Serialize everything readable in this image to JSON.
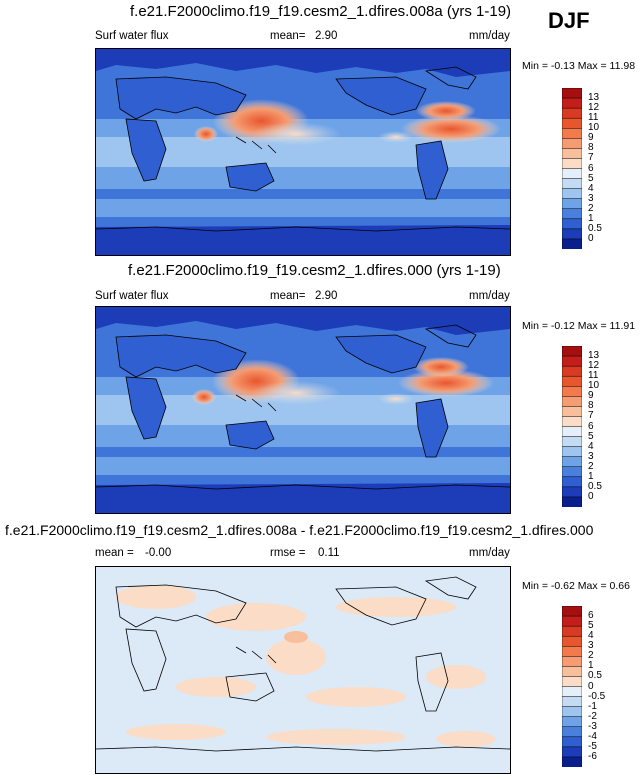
{
  "season": "DJF",
  "panels": [
    {
      "title": "f.e21.F2000climo.f19_f19.cesm2_1.dfires.008a (yrs 1-19)",
      "left_label": "Surf water flux",
      "stat_label": "mean=",
      "stat_value": "2.90",
      "units": "mm/day",
      "minmax": "Min = -0.13 Max = 11.98",
      "colorbar_labels": [
        "13",
        "12",
        "11",
        "10",
        "9",
        "8",
        "7",
        "6",
        "5",
        "4",
        "3",
        "2",
        "1",
        "0.5",
        "0"
      ],
      "colorbar_colors": [
        "#a50f0f",
        "#c41e1a",
        "#d93a23",
        "#e8562e",
        "#f27a4c",
        "#f59c72",
        "#f8bf9c",
        "#fbdcc6",
        "#e4eff9",
        "#c3dcf4",
        "#9ec5ef",
        "#6fa3e8",
        "#4a80dd",
        "#2f5fd0",
        "#1c3cb8",
        "#0b1f8c"
      ]
    },
    {
      "title": "f.e21.F2000climo.f19_f19.cesm2_1.dfires.000 (yrs 1-19)",
      "left_label": "Surf water flux",
      "stat_label": "mean=",
      "stat_value": "2.90",
      "units": "mm/day",
      "minmax": "Min = -0.12 Max = 11.91",
      "colorbar_labels": [
        "13",
        "12",
        "11",
        "10",
        "9",
        "8",
        "7",
        "6",
        "5",
        "4",
        "3",
        "2",
        "1",
        "0.5",
        "0"
      ],
      "colorbar_colors": [
        "#a50f0f",
        "#c41e1a",
        "#d93a23",
        "#e8562e",
        "#f27a4c",
        "#f59c72",
        "#f8bf9c",
        "#fbdcc6",
        "#e4eff9",
        "#c3dcf4",
        "#9ec5ef",
        "#6fa3e8",
        "#4a80dd",
        "#2f5fd0",
        "#1c3cb8",
        "#0b1f8c"
      ]
    },
    {
      "title": "f.e21.F2000climo.f19_f19.cesm2_1.dfires.008a - f.e21.F2000climo.f19_f19.cesm2_1.dfires.000",
      "left_label": "mean =",
      "left_value": "-0.00",
      "stat_label": "rmse =",
      "stat_value": "0.11",
      "units": "mm/day",
      "minmax": "Min = -0.62 Max = 0.66",
      "colorbar_labels": [
        "6",
        "5",
        "4",
        "3",
        "2",
        "1",
        "0.5",
        "0",
        "-0.5",
        "-1",
        "-2",
        "-3",
        "-4",
        "-5",
        "-6"
      ],
      "colorbar_colors": [
        "#a50f0f",
        "#c41e1a",
        "#d93a23",
        "#e8562e",
        "#f27a4c",
        "#f59c72",
        "#f8bf9c",
        "#fbdcc6",
        "#e4eff9",
        "#c3dcf4",
        "#9ec5ef",
        "#6fa3e8",
        "#4a80dd",
        "#2f5fd0",
        "#1c3cb8",
        "#0b1f8c"
      ]
    }
  ],
  "colors": {
    "ocean_base": "#3a6fd8",
    "ocean_deep": "#1e4bb8",
    "land_dry": "#1c3cb8",
    "warm_max": "#e8562e",
    "diff_base": "#dce9f7",
    "diff_pos": "#fbdcc6"
  }
}
